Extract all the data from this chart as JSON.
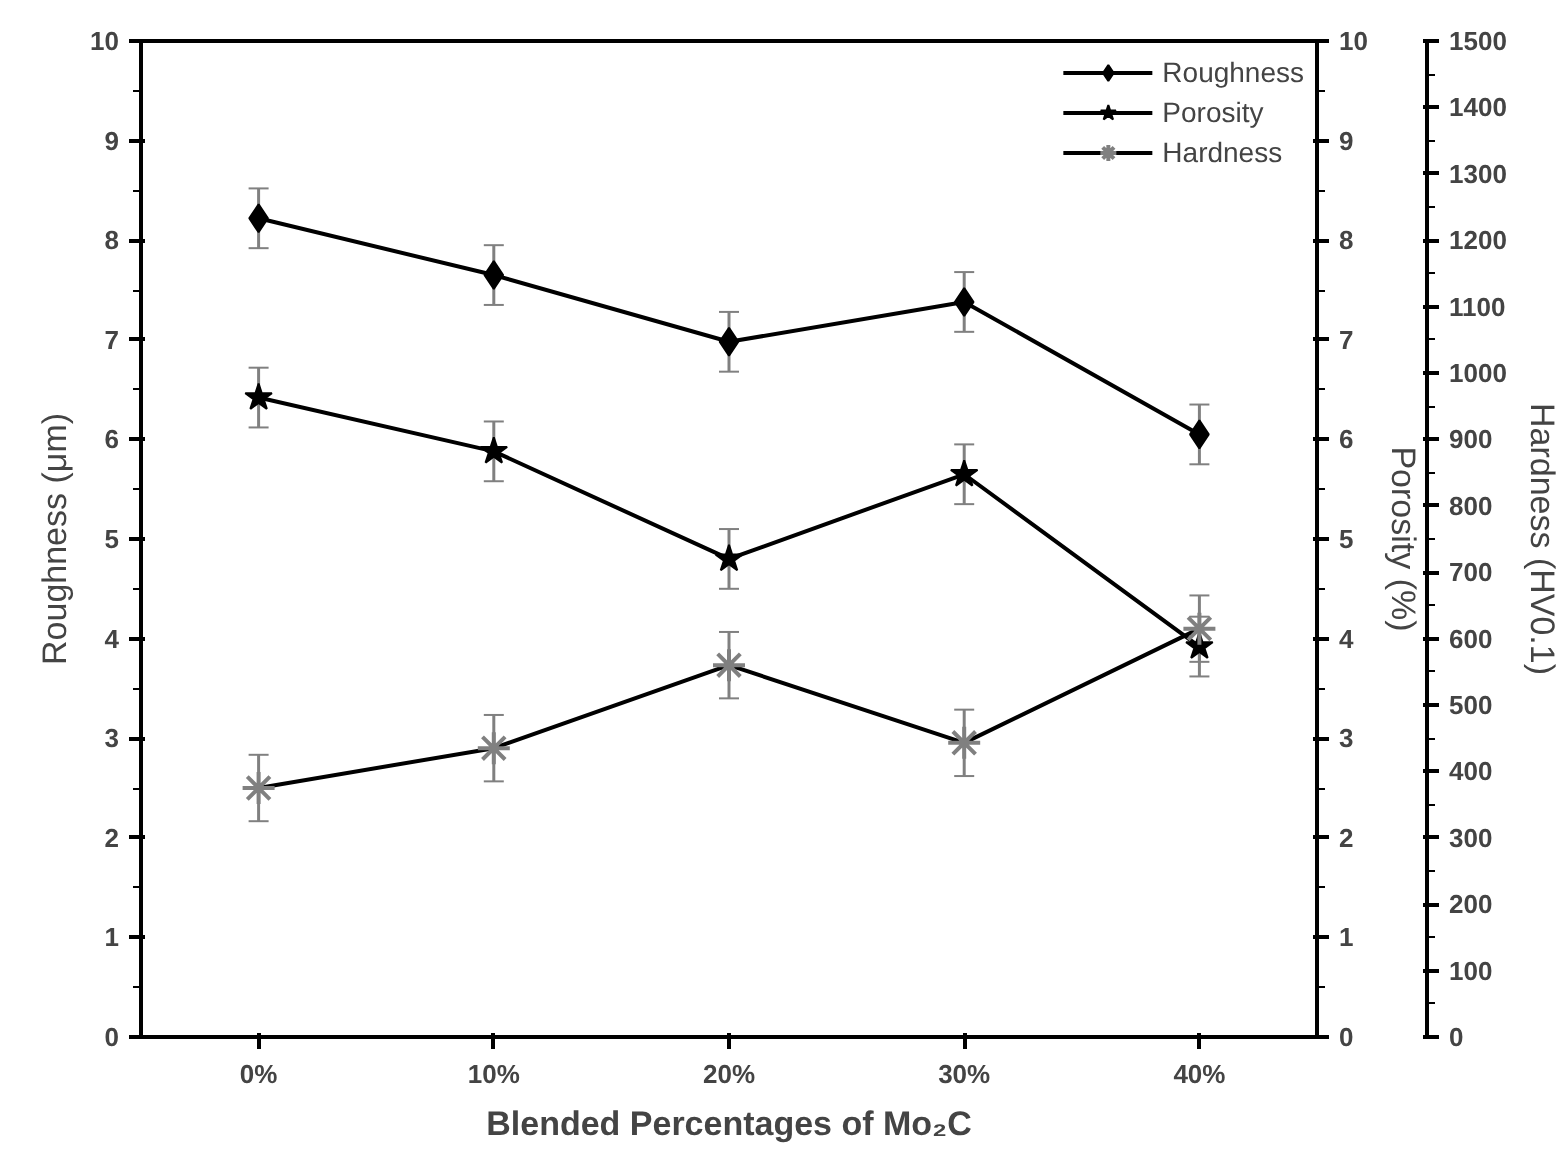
{
  "chart_data": {
    "type": "line",
    "xlabel": "Blended Percentages of Mo₂C",
    "ylabel": "Roughness (μm)",
    "y2label": "Porosity (%)",
    "y3label": "Hardness (HV0.1)",
    "categories": [
      "0%",
      "10%",
      "20%",
      "30%",
      "40%"
    ],
    "series": [
      {
        "name": "Roughness",
        "color": "#000000",
        "marker": "diamond",
        "values": [
          8.22,
          7.65,
          6.98,
          7.38,
          6.05
        ],
        "errors": [
          0.3,
          0.3,
          0.3,
          0.3,
          0.3
        ]
      },
      {
        "name": "Porosity",
        "color": "#000000",
        "marker": "star",
        "axis": "y2",
        "values": [
          6.42,
          5.88,
          4.8,
          5.65,
          3.92
        ],
        "errors": [
          0.3,
          0.3,
          0.3,
          0.3,
          0.3
        ]
      },
      {
        "name": "Hardness",
        "color": "#808080",
        "marker": "cross",
        "axis": "y3",
        "values": [
          375,
          435,
          560,
          443,
          615
        ],
        "errors": [
          50,
          50,
          50,
          50,
          50
        ]
      }
    ],
    "ylim": [
      0,
      10
    ],
    "yticks": [
      0,
      1,
      2,
      3,
      4,
      5,
      6,
      7,
      8,
      9,
      10
    ],
    "y2lim": [
      0,
      10
    ],
    "y2ticks": [
      0,
      1,
      2,
      3,
      4,
      5,
      6,
      7,
      8,
      9,
      10
    ],
    "y3lim": [
      0,
      1500
    ],
    "y3ticks": [
      0,
      100,
      200,
      300,
      400,
      500,
      600,
      700,
      800,
      900,
      1000,
      1100,
      1200,
      1300,
      1400,
      1500
    ],
    "legend": "top right",
    "grid": false,
    "line_style": "solid"
  }
}
